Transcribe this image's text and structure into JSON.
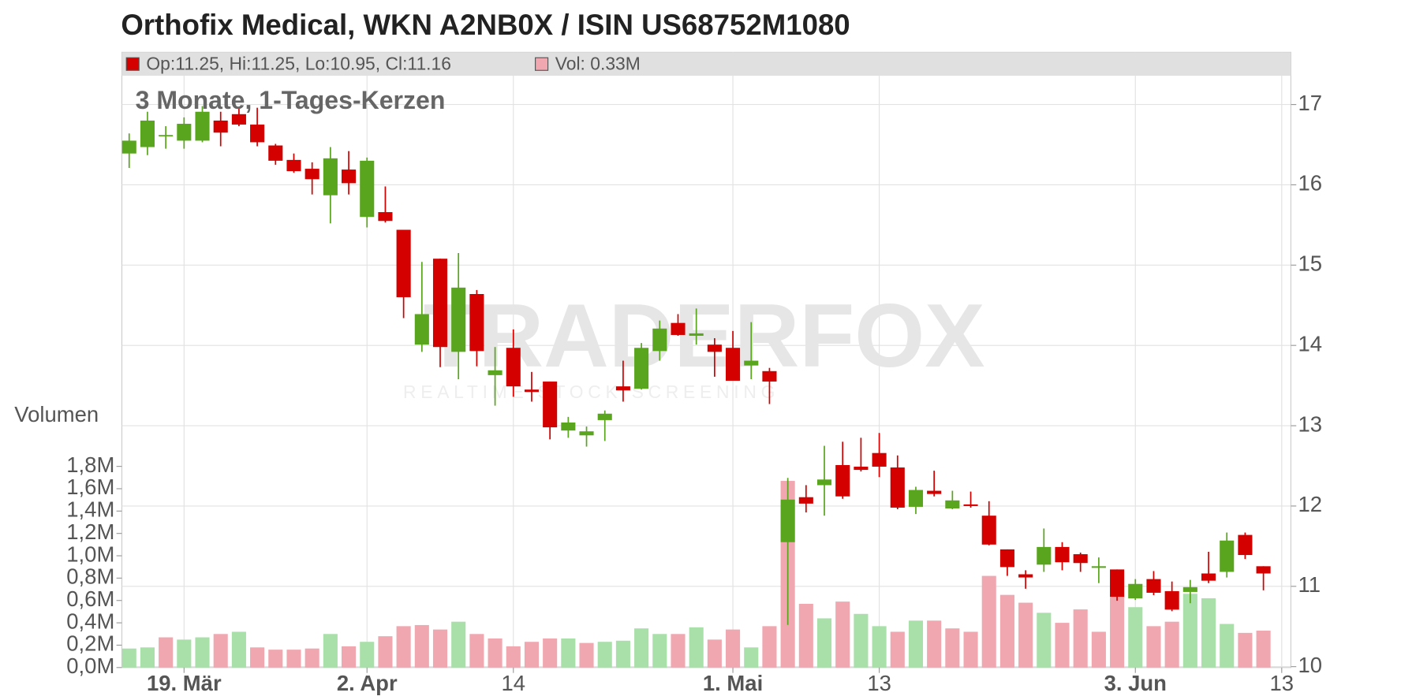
{
  "chart_data": {
    "type": "candlestick",
    "title": "Orthofix Medical, WKN A2NB0X / ISIN US68752M1080",
    "subtitle": "3 Monate, 1-Tages-Kerzen",
    "volume_label": "Volumen",
    "watermark": "TRADERFOX",
    "watermark_tagline": "REALTIME STOCK SCREENING",
    "legend": {
      "price_text": "Op:11.25, Hi:11.25, Lo:10.95, Cl:11.16",
      "price_color": "#d40000",
      "volume_text": "Vol: 0.33M",
      "volume_color": "#f0a7b0"
    },
    "up_color": "#5aa51e",
    "down_color": "#d40000",
    "grid": true,
    "x": [
      0,
      1,
      2,
      3,
      4,
      5,
      6,
      7,
      8,
      9,
      10,
      11,
      12,
      13,
      14,
      15,
      16,
      17,
      18,
      19,
      20,
      21,
      22,
      23,
      24,
      25,
      26,
      27,
      28,
      29,
      30,
      31,
      32,
      33,
      34,
      35,
      36,
      37,
      38,
      39,
      40,
      41,
      42,
      43,
      44,
      45,
      46,
      47,
      48,
      49,
      50,
      51,
      52,
      53,
      54,
      55,
      56,
      57,
      58,
      59,
      60,
      61,
      62
    ],
    "xlim": [
      -0.4,
      63.5
    ],
    "xticks": [
      {
        "value": 3,
        "label": "19. Mär"
      },
      {
        "value": 13,
        "label": "2. Apr"
      },
      {
        "value": 21,
        "label": "14"
      },
      {
        "value": 33,
        "label": "1. Mai"
      },
      {
        "value": 41,
        "label": "13"
      },
      {
        "value": 55,
        "label": "3. Jun"
      },
      {
        "value": 63,
        "label": "13"
      }
    ],
    "open": [
      16.39,
      16.47,
      16.61,
      16.55,
      16.55,
      16.8,
      16.88,
      16.75,
      16.49,
      16.31,
      16.2,
      15.87,
      16.19,
      15.6,
      15.66,
      15.44,
      14.01,
      15.08,
      13.92,
      14.64,
      13.63,
      13.97,
      13.45,
      13.55,
      12.94,
      12.88,
      13.07,
      13.49,
      13.46,
      13.93,
      14.28,
      14.12,
      14.01,
      13.97,
      13.75,
      13.68,
      11.55,
      12.11,
      12.26,
      12.51,
      12.49,
      12.66,
      12.48,
      11.99,
      12.19,
      11.97,
      12.02,
      11.88,
      11.46,
      11.15,
      11.27,
      11.49,
      11.4,
      11.23,
      11.21,
      10.85,
      11.09,
      10.94,
      10.93,
      11.16,
      11.18,
      11.64,
      11.25
    ],
    "high": [
      16.64,
      16.91,
      16.73,
      16.84,
      16.98,
      16.91,
      16.96,
      16.96,
      16.51,
      16.39,
      16.28,
      16.47,
      16.42,
      16.34,
      15.98,
      15.44,
      15.04,
      15.08,
      15.15,
      14.69,
      13.98,
      14.2,
      13.67,
      13.55,
      13.11,
      12.99,
      13.19,
      13.81,
      14.03,
      14.31,
      14.39,
      14.46,
      14.09,
      14.18,
      14.29,
      13.72,
      12.35,
      12.26,
      12.75,
      12.8,
      12.85,
      12.91,
      12.63,
      12.24,
      12.44,
      12.19,
      12.18,
      12.06,
      11.46,
      11.2,
      11.72,
      11.55,
      11.42,
      11.36,
      11.21,
      11.09,
      11.19,
      11.06,
      11.08,
      11.43,
      11.67,
      11.67,
      11.25
    ],
    "low": [
      16.21,
      16.37,
      16.45,
      16.45,
      16.53,
      16.48,
      16.73,
      16.48,
      16.25,
      16.15,
      15.88,
      15.52,
      15.88,
      15.47,
      15.53,
      14.34,
      13.92,
      13.73,
      13.58,
      13.74,
      13.25,
      13.36,
      13.3,
      12.83,
      12.85,
      12.74,
      12.81,
      13.3,
      13.45,
      13.81,
      14.12,
      14.01,
      13.61,
      13.56,
      13.58,
      13.27,
      10.52,
      11.92,
      11.88,
      12.09,
      12.43,
      12.36,
      11.96,
      11.9,
      12.12,
      11.96,
      11.98,
      11.51,
      11.13,
      10.97,
      11.18,
      11.2,
      11.18,
      11.04,
      10.82,
      10.83,
      10.89,
      10.69,
      10.79,
      11.04,
      11.11,
      11.34,
      10.95
    ],
    "close": [
      16.55,
      16.8,
      16.62,
      16.76,
      16.91,
      16.65,
      16.75,
      16.53,
      16.3,
      16.17,
      16.07,
      16.33,
      16.02,
      16.3,
      15.55,
      14.6,
      14.39,
      13.98,
      14.72,
      13.93,
      13.69,
      13.49,
      13.42,
      12.98,
      13.04,
      12.93,
      13.15,
      13.44,
      13.97,
      14.21,
      14.13,
      14.15,
      13.92,
      13.56,
      13.81,
      13.55,
      12.08,
      12.03,
      12.33,
      12.12,
      12.45,
      12.49,
      11.98,
      12.2,
      12.15,
      12.07,
      12.0,
      11.52,
      11.24,
      11.11,
      11.49,
      11.3,
      11.29,
      11.25,
      10.87,
      11.03,
      10.92,
      10.71,
      10.99,
      11.07,
      11.57,
      11.39,
      11.16
    ],
    "ylim": [
      10,
      17.65
    ],
    "yticks": [
      10,
      11,
      12,
      13,
      14,
      15,
      16,
      17
    ],
    "volume": {
      "values": [
        0.17,
        0.18,
        0.27,
        0.25,
        0.27,
        0.3,
        0.32,
        0.18,
        0.16,
        0.16,
        0.17,
        0.3,
        0.19,
        0.23,
        0.28,
        0.37,
        0.38,
        0.34,
        0.41,
        0.3,
        0.26,
        0.19,
        0.23,
        0.26,
        0.26,
        0.22,
        0.23,
        0.24,
        0.35,
        0.3,
        0.3,
        0.36,
        0.25,
        0.34,
        0.18,
        0.37,
        1.67,
        0.57,
        0.44,
        0.59,
        0.48,
        0.37,
        0.32,
        0.42,
        0.42,
        0.35,
        0.32,
        0.82,
        0.65,
        0.58,
        0.49,
        0.4,
        0.52,
        0.32,
        0.66,
        0.54,
        0.37,
        0.41,
        0.66,
        0.62,
        0.39,
        0.31,
        0.33
      ],
      "colors": [
        "#a9dfa9",
        "#a9dfa9",
        "#f0a7b0",
        "#a9dfa9",
        "#a9dfa9",
        "#f0a7b0",
        "#a9dfa9",
        "#f0a7b0",
        "#f0a7b0",
        "#f0a7b0",
        "#f0a7b0",
        "#a9dfa9",
        "#f0a7b0",
        "#a9dfa9",
        "#f0a7b0",
        "#f0a7b0",
        "#f0a7b0",
        "#f0a7b0",
        "#a9dfa9",
        "#f0a7b0",
        "#f0a7b0",
        "#f0a7b0",
        "#f0a7b0",
        "#f0a7b0",
        "#a9dfa9",
        "#f0a7b0",
        "#a9dfa9",
        "#a9dfa9",
        "#a9dfa9",
        "#a9dfa9",
        "#f0a7b0",
        "#a9dfa9",
        "#f0a7b0",
        "#f0a7b0",
        "#a9dfa9",
        "#f0a7b0",
        "#f0a7b0",
        "#f0a7b0",
        "#a9dfa9",
        "#f0a7b0",
        "#a9dfa9",
        "#a9dfa9",
        "#f0a7b0",
        "#a9dfa9",
        "#f0a7b0",
        "#f0a7b0",
        "#f0a7b0",
        "#f0a7b0",
        "#f0a7b0",
        "#f0a7b0",
        "#a9dfa9",
        "#f0a7b0",
        "#f0a7b0",
        "#f0a7b0",
        "#f0a7b0",
        "#a9dfa9",
        "#f0a7b0",
        "#f0a7b0",
        "#a9dfa9",
        "#a9dfa9",
        "#a9dfa9",
        "#f0a7b0",
        "#f0a7b0"
      ],
      "ylim": [
        0,
        1.8
      ],
      "yticks": [
        {
          "value": 0,
          "label": "0,0M"
        },
        {
          "value": 0.2,
          "label": "0,2M"
        },
        {
          "value": 0.4,
          "label": "0,4M"
        },
        {
          "value": 0.6,
          "label": "0,6M"
        },
        {
          "value": 0.8,
          "label": "0,8M"
        },
        {
          "value": 1.0,
          "label": "1,0M"
        },
        {
          "value": 1.2,
          "label": "1,2M"
        },
        {
          "value": 1.4,
          "label": "1,4M"
        },
        {
          "value": 1.6,
          "label": "1,6M"
        },
        {
          "value": 1.8,
          "label": "1,8M"
        }
      ]
    }
  }
}
